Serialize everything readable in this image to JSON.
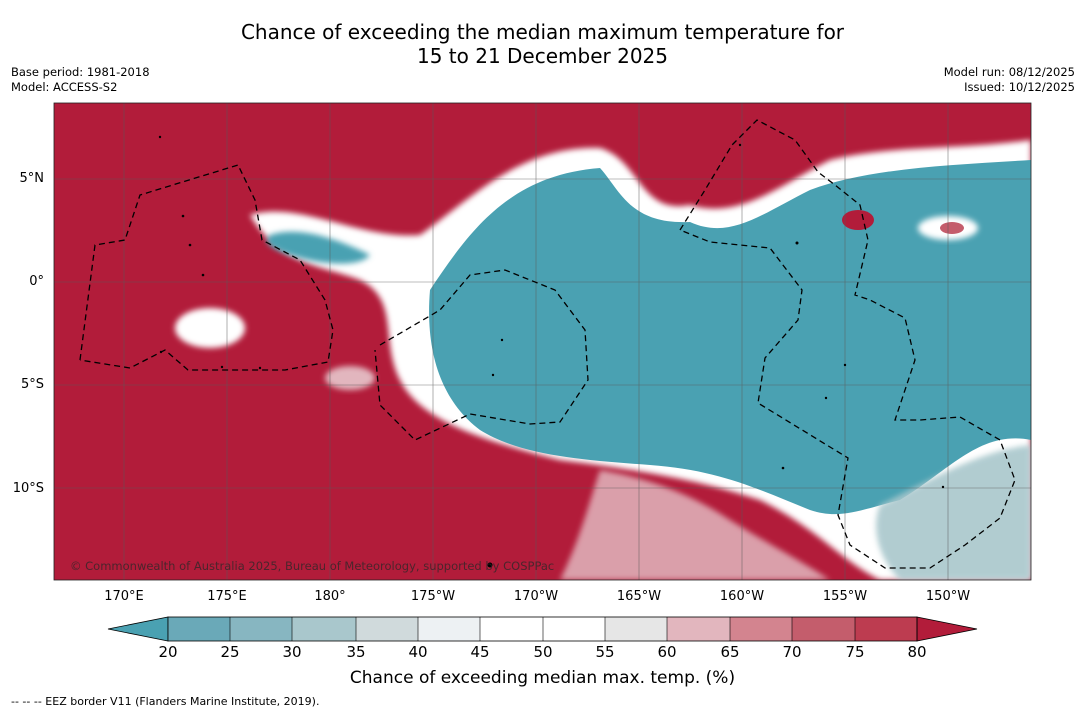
{
  "title_line1": "Chance of exceeding the median maximum temperature for",
  "title_line2": "15 to 21 December 2025",
  "base_period": "Base period: 1981-2018",
  "model": "Model: ACCESS-S2",
  "model_run": "Model run: 08/12/2025",
  "issued": "Issued: 10/12/2025",
  "credit": "© Commonwealth of Australia 2025, Bureau of Meteorology, supported by COSPPac",
  "lat_labels": [
    "5°N",
    "0°",
    "5°S",
    "10°S"
  ],
  "lon_labels": [
    "170°E",
    "175°E",
    "180°",
    "175°W",
    "170°W",
    "165°W",
    "160°W",
    "155°W",
    "150°W"
  ],
  "colorbar": {
    "ticks": [
      "20",
      "25",
      "30",
      "35",
      "40",
      "45",
      "50",
      "55",
      "60",
      "65",
      "70",
      "75",
      "80"
    ],
    "label": "Chance of exceeding median max. temp. (%)",
    "colors": [
      "#4aa1b2",
      "#6aa9b8",
      "#87b6c1",
      "#a9c7cc",
      "#d0dadc",
      "#edf1f3",
      "#ffffff",
      "#ffffff",
      "#e6e6e6",
      "#e2b6be",
      "#d3848f",
      "#c45d6c",
      "#bd3c50",
      "#b21c3a"
    ]
  },
  "footnote": "--  --  -- EEZ border V11 (Flanders Marine Institute, 2019).",
  "legend": {
    "below_color": "#4aa1b2",
    "above_color": "#b21c3a"
  }
}
